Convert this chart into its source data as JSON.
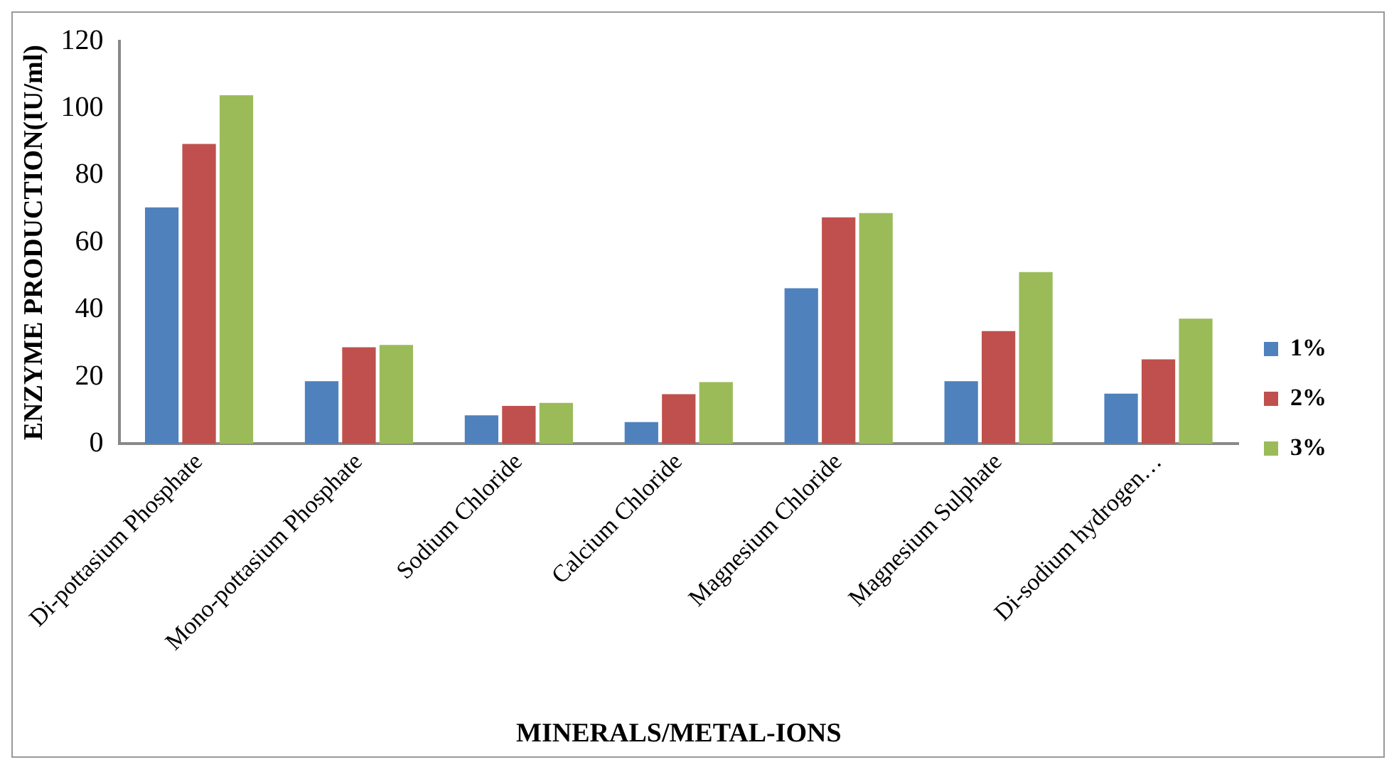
{
  "chart_data": {
    "type": "bar",
    "xlabel": "MINERALS/METAL-IONS",
    "ylabel": "ENZYME PRODUCTION(IU/ml)",
    "categories": [
      "Di-pottasium Phosphate",
      "Mono-pottasium Phosphate",
      "Sodium Chloride",
      "Calcium Chloride",
      "Magnesium Chloride",
      "Magnesium Sulphate",
      "Di-sodium hydrogen…"
    ],
    "series": [
      {
        "name": "1%",
        "color": "#4f81bd",
        "values": [
          70.5,
          18.7,
          8.5,
          6.5,
          46.4,
          18.7,
          15
        ]
      },
      {
        "name": "2%",
        "color": "#c0504d",
        "values": [
          89.4,
          28.8,
          11.3,
          14.8,
          67.5,
          33.6,
          25.2
        ]
      },
      {
        "name": "3%",
        "color": "#9bbb59",
        "values": [
          103.9,
          29.5,
          12.2,
          18.4,
          68.8,
          51.2,
          37.3
        ]
      }
    ],
    "ylim": [
      0,
      120
    ],
    "yticks": [
      0,
      20,
      40,
      60,
      80,
      100,
      120
    ],
    "grid": false,
    "legend": "right"
  }
}
